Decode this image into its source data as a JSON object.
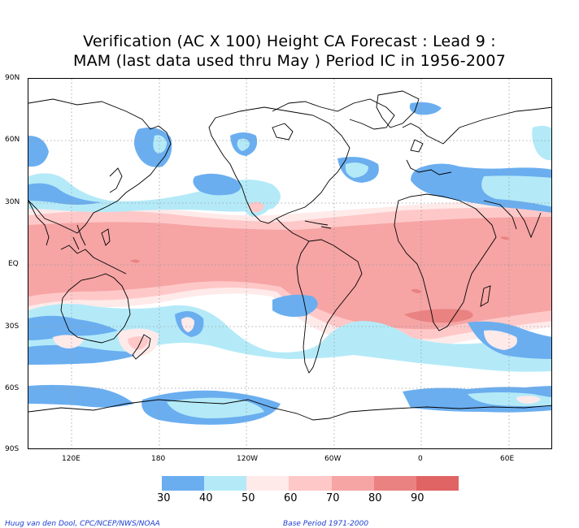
{
  "title": {
    "line1": "Verification (AC X 100) Height CA Forecast : Lead 9 :",
    "line2": "MAM (last data used thru May ) Period IC in 1956-2007"
  },
  "lat_labels": [
    "90N",
    "60N",
    "30N",
    "EQ",
    "30S",
    "60S",
    "90S"
  ],
  "lon_labels": [
    "120E",
    "180",
    "120W",
    "60W",
    "0",
    "60E"
  ],
  "legend": {
    "ticks": [
      "30",
      "40",
      "50",
      "60",
      "70",
      "80",
      "90"
    ],
    "colors": [
      "#6aaef0",
      "#b4eaf8",
      "#ffeaea",
      "#ffc8c8",
      "#f6a4a4",
      "#ea8282",
      "#e06464"
    ]
  },
  "footer": {
    "left": "Huug van den Dool, CPC/NCEP/NWS/NOAA",
    "right": "Base Period 1971-2000"
  }
}
